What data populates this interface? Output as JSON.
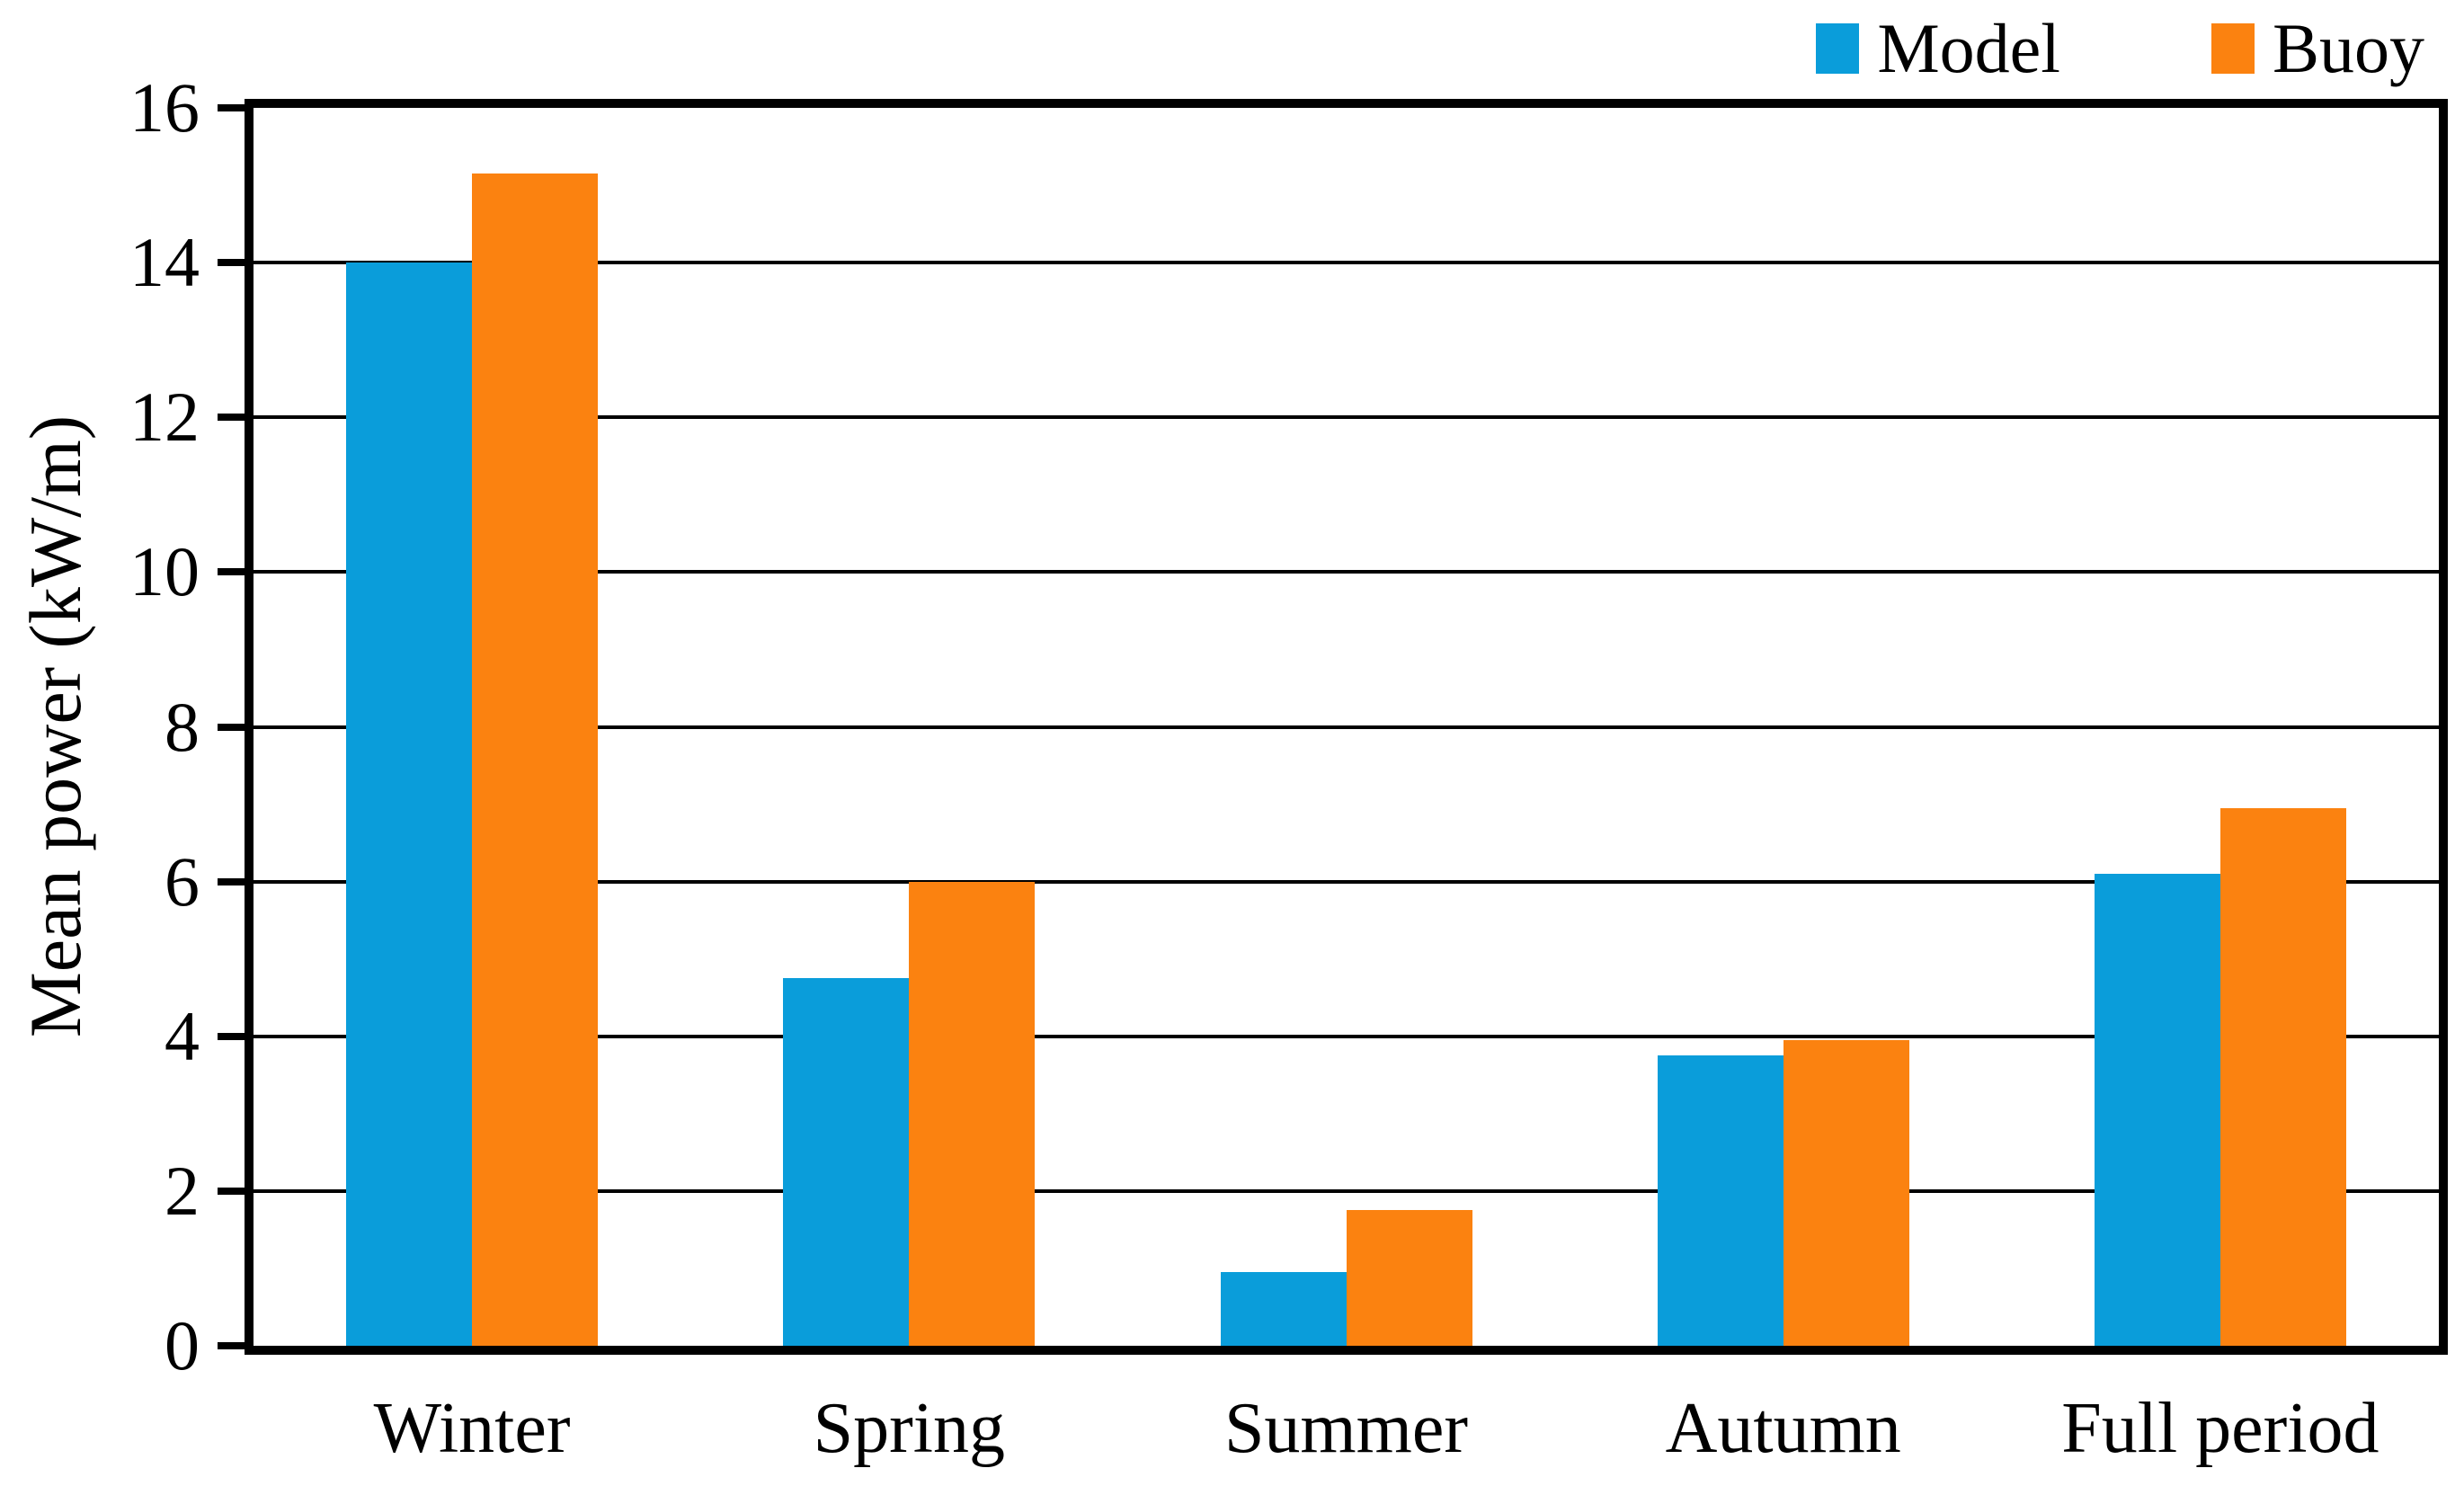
{
  "chart_data": {
    "type": "bar",
    "title": "",
    "categories": [
      "Winter",
      "Spring",
      "Summer",
      "Autumn",
      "Full period"
    ],
    "series": [
      {
        "name": "Model",
        "color": "#0a9dda",
        "values": [
          14.0,
          4.75,
          0.95,
          3.75,
          6.1
        ]
      },
      {
        "name": "Buoy",
        "color": "#fb8210",
        "values": [
          15.15,
          6.0,
          1.75,
          3.95,
          6.95
        ]
      }
    ],
    "xlabel": "",
    "ylabel": "Mean power (kW/m)",
    "ylim": [
      0,
      16
    ],
    "yticks": [
      0,
      2,
      4,
      6,
      8,
      10,
      12,
      14,
      16
    ],
    "grid": "horizontal",
    "legend_position": "top-right",
    "bar_gap_layout": "grouped-pairs"
  },
  "y_axis": {
    "title": "Mean power (kW/m)",
    "tick_labels": [
      "0",
      "2",
      "4",
      "6",
      "8",
      "10",
      "12",
      "14",
      "16"
    ]
  },
  "x_axis": {
    "categories": [
      "Winter",
      "Spring",
      "Summer",
      "Autumn",
      "Full period"
    ]
  },
  "legend": {
    "items": [
      {
        "label": "Model",
        "color": "#0a9dda"
      },
      {
        "label": "Buoy",
        "color": "#fb8210"
      }
    ]
  },
  "colors": {
    "model_blue": "#0a9dda",
    "buoy_orange": "#fb8210",
    "axis_black": "#000000",
    "background": "#ffffff"
  }
}
